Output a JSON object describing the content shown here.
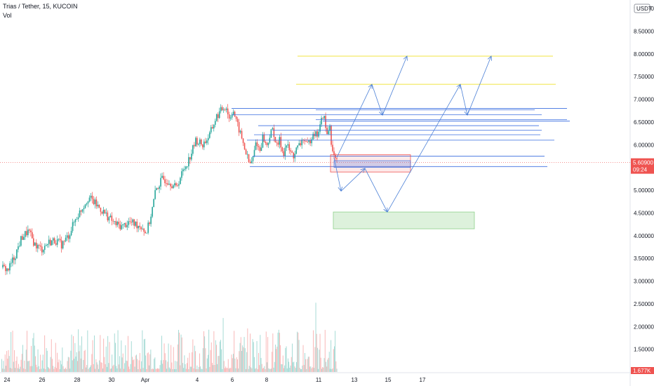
{
  "header": {
    "symbol_line": "Trias / Tether, 15, KUCOIN",
    "volume_label": "Vol"
  },
  "colors": {
    "up": "#26a69a",
    "down": "#ef5350",
    "arrow": "#4a7fd6",
    "yellow_level": "#f0e442",
    "blue_level": "#3c6fe0",
    "sell_zone": "#ef5350",
    "buy_zone": "#8fd18b",
    "last_price": "#ef5350"
  },
  "chart_data": {
    "type": "candlestick",
    "title": "Trias / Tether, 15, KUCOIN",
    "currency_label": "USDT",
    "y_range": [
      1.0,
      9.0
    ],
    "y_ticks": [
      "9.00000",
      "8.50000",
      "8.00000",
      "7.50000",
      "7.00000",
      "6.50000",
      "6.00000",
      "5.50000",
      "5.00000",
      "4.50000",
      "4.00000",
      "3.50000",
      "3.00000",
      "2.50000",
      "2.00000",
      "1.50000"
    ],
    "x_ticks": [
      "24",
      "26",
      "28",
      "30",
      "Apr",
      "4",
      "6",
      "8",
      "11",
      "13",
      "15",
      "17"
    ],
    "last_price": "5.60900",
    "countdown": "09:24",
    "volume_label": "1.677K",
    "price_path": [
      [
        0,
        3.3
      ],
      [
        0.02,
        3.25
      ],
      [
        0.04,
        3.55
      ],
      [
        0.06,
        3.95
      ],
      [
        0.08,
        4.1
      ],
      [
        0.1,
        3.8
      ],
      [
        0.12,
        3.7
      ],
      [
        0.14,
        3.85
      ],
      [
        0.16,
        3.9
      ],
      [
        0.18,
        3.8
      ],
      [
        0.2,
        4.0
      ],
      [
        0.22,
        4.35
      ],
      [
        0.24,
        4.6
      ],
      [
        0.26,
        4.85
      ],
      [
        0.28,
        4.7
      ],
      [
        0.3,
        4.55
      ],
      [
        0.32,
        4.4
      ],
      [
        0.34,
        4.25
      ],
      [
        0.36,
        4.2
      ],
      [
        0.38,
        4.3
      ],
      [
        0.4,
        4.25
      ],
      [
        0.42,
        4.2
      ],
      [
        0.43,
        4.05
      ],
      [
        0.44,
        4.25
      ],
      [
        0.45,
        4.6
      ],
      [
        0.46,
        5.0
      ],
      [
        0.48,
        5.25
      ],
      [
        0.5,
        5.2
      ],
      [
        0.52,
        5.05
      ],
      [
        0.54,
        5.4
      ],
      [
        0.56,
        5.7
      ],
      [
        0.58,
        6.1
      ],
      [
        0.6,
        6.0
      ],
      [
        0.62,
        6.2
      ],
      [
        0.64,
        6.6
      ],
      [
        0.66,
        6.8
      ],
      [
        0.67,
        6.85
      ],
      [
        0.68,
        6.55
      ],
      [
        0.69,
        6.8
      ],
      [
        0.7,
        6.5
      ],
      [
        0.71,
        6.3
      ],
      [
        0.72,
        6.05
      ],
      [
        0.73,
        5.8
      ],
      [
        0.74,
        5.55
      ],
      [
        0.75,
        5.7
      ],
      [
        0.76,
        6.1
      ],
      [
        0.77,
        5.85
      ],
      [
        0.78,
        6.2
      ],
      [
        0.79,
        5.95
      ],
      [
        0.8,
        6.2
      ],
      [
        0.81,
        6.35
      ],
      [
        0.82,
        5.95
      ],
      [
        0.83,
        6.1
      ],
      [
        0.84,
        5.8
      ],
      [
        0.85,
        6.0
      ],
      [
        0.86,
        5.85
      ],
      [
        0.87,
        5.75
      ],
      [
        0.88,
        5.9
      ],
      [
        0.89,
        6.0
      ],
      [
        0.9,
        6.15
      ],
      [
        0.91,
        5.95
      ],
      [
        0.92,
        6.1
      ],
      [
        0.93,
        6.3
      ],
      [
        0.94,
        6.2
      ],
      [
        0.95,
        6.4
      ],
      [
        0.96,
        6.7
      ],
      [
        0.97,
        6.2
      ],
      [
        0.98,
        6.45
      ],
      [
        0.985,
        5.9
      ],
      [
        0.99,
        5.75
      ],
      [
        1.0,
        5.61
      ]
    ],
    "annotations": {
      "yellow_levels": [
        7.95,
        7.33
      ],
      "blue_levels": [
        6.8,
        6.77,
        6.66,
        6.55,
        6.52,
        6.42,
        6.32,
        6.22,
        6.1,
        5.75,
        5.52
      ],
      "sell_zone": [
        5.4,
        5.78
      ],
      "buy_zone": [
        4.15,
        4.52
      ],
      "projected_path_1": [
        [
          5.72,
          0
        ],
        [
          4.98,
          1
        ],
        [
          5.48,
          2
        ],
        [
          4.52,
          3
        ],
        [
          7.33,
          4
        ],
        [
          6.65,
          5
        ],
        [
          7.95,
          6
        ]
      ],
      "projected_path_2": [
        [
          5.72,
          0
        ],
        [
          7.33,
          1
        ],
        [
          6.65,
          2
        ],
        [
          7.95,
          3
        ]
      ]
    },
    "xlabel": "",
    "ylabel": "",
    "grid": false,
    "legend": "none"
  }
}
